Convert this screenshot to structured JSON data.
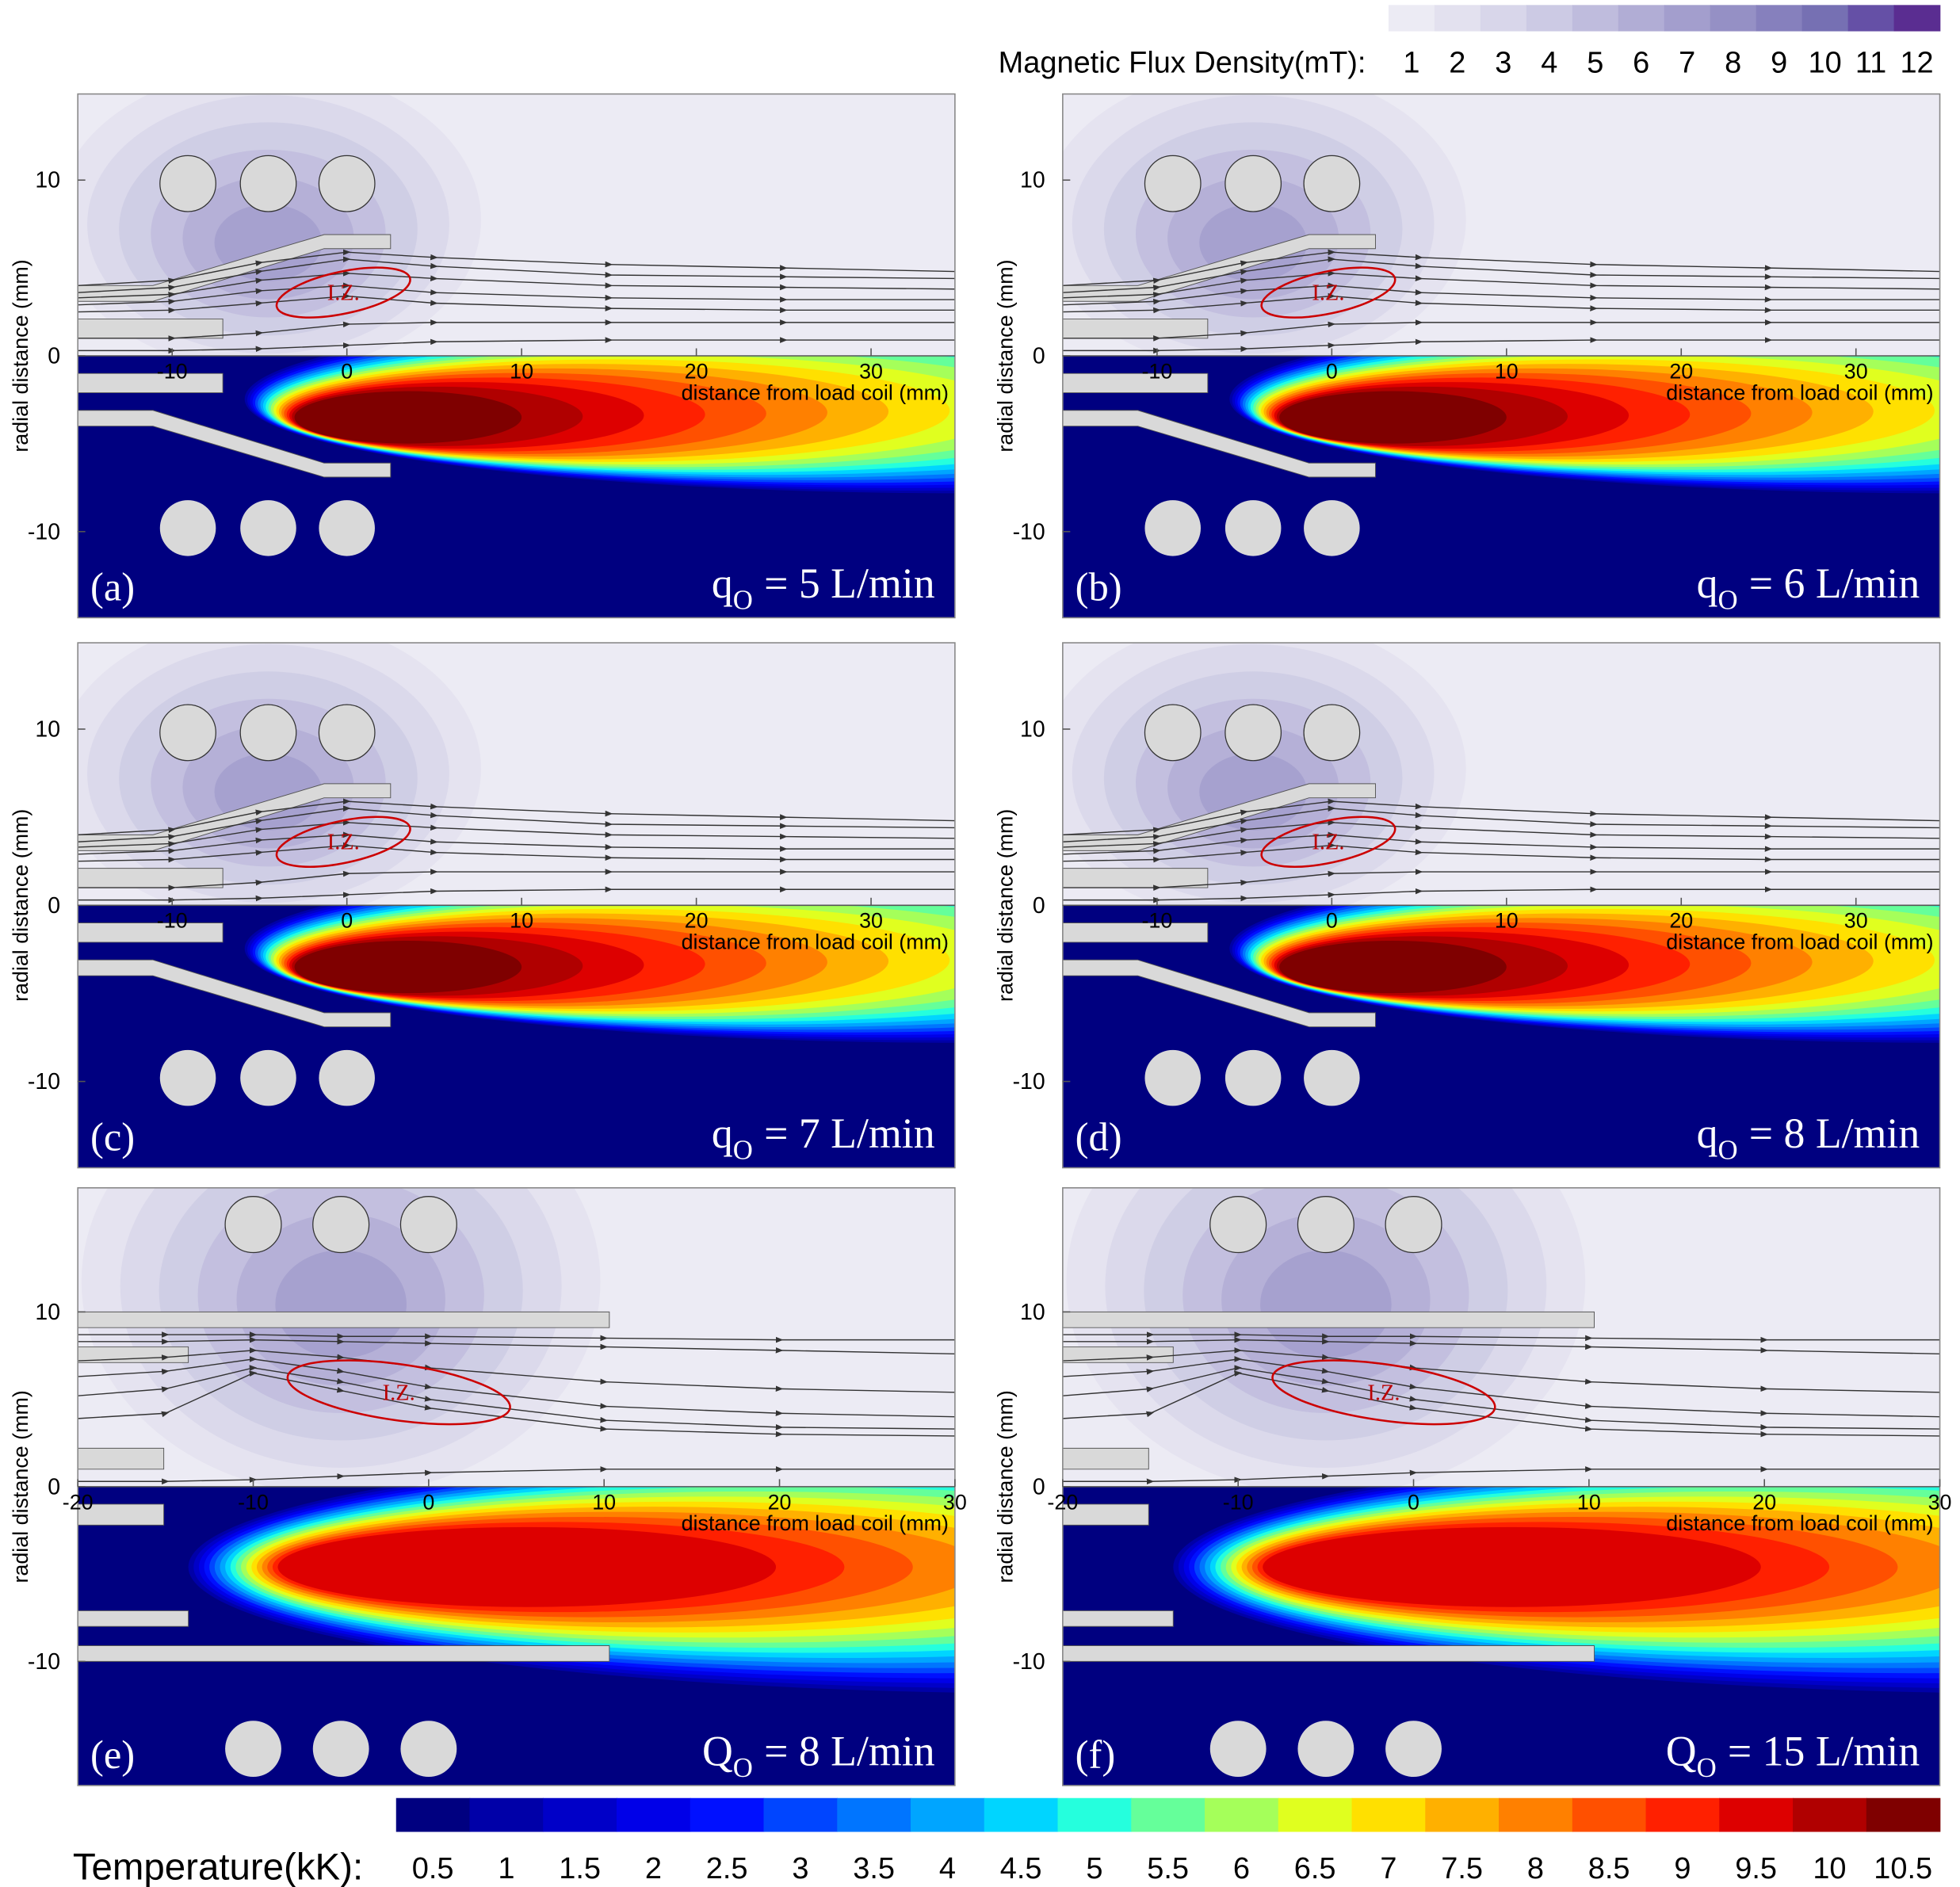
{
  "magnetic_colorbar": {
    "label": "Magnetic Flux Density(mT):",
    "ticks": [
      1,
      2,
      3,
      4,
      5,
      6,
      7,
      8,
      9,
      10,
      11,
      12
    ],
    "colors": [
      "#ecebf4",
      "#e3e1ef",
      "#d8d6ea",
      "#cccae4",
      "#bfbcdd",
      "#b1add5",
      "#a39ecd",
      "#9590c5",
      "#8680bd",
      "#7670b3",
      "#6550a6",
      "#5a2d91"
    ]
  },
  "temperature_colorbar": {
    "label": "Temperature(kK):",
    "ticks": [
      0.5,
      1,
      1.5,
      2,
      2.5,
      3,
      3.5,
      4,
      4.5,
      5,
      5.5,
      6,
      6.5,
      7,
      7.5,
      8,
      8.5,
      9,
      9.5,
      10,
      10.5
    ],
    "colors": [
      "#000080",
      "#0000a8",
      "#0000c8",
      "#0000e8",
      "#0010ff",
      "#0045ff",
      "#0075ff",
      "#00a5ff",
      "#00d5ff",
      "#25ffdd",
      "#65ff9a",
      "#a5ff5a",
      "#e0ff1f",
      "#ffe000",
      "#ffb000",
      "#ff8000",
      "#ff5000",
      "#ff2000",
      "#dd0000",
      "#b00000",
      "#7f0000"
    ]
  },
  "panels": [
    {
      "label": "(a)",
      "quantity": "q",
      "subscript": "O",
      "condition": "= 5 L/min",
      "y_axis_label": "radial distance (mm)",
      "x_axis_label": "distance from load coil (mm)",
      "iz_label": "I.Z.",
      "xlim": [
        -15.4,
        34.8
      ],
      "ylim": [
        -14.9,
        14.9
      ],
      "xticks": [
        -10,
        0,
        10,
        20,
        30
      ],
      "yticks": [
        10,
        0,
        -10
      ]
    },
    {
      "label": "(b)",
      "quantity": "q",
      "subscript": "O",
      "condition": "= 6 L/min",
      "y_axis_label": "radial distance (mm)",
      "x_axis_label": "distance from load coil (mm)",
      "iz_label": "I.Z.",
      "xlim": [
        -15.4,
        34.8
      ],
      "ylim": [
        -14.9,
        14.9
      ],
      "xticks": [
        -10,
        0,
        10,
        20,
        30
      ],
      "yticks": [
        10,
        0,
        -10
      ]
    },
    {
      "label": "(c)",
      "quantity": "q",
      "subscript": "O",
      "condition": "= 7 L/min",
      "y_axis_label": "radial distance (mm)",
      "x_axis_label": "distance from load coil (mm)",
      "iz_label": "I.Z.",
      "xlim": [
        -15.4,
        34.8
      ],
      "ylim": [
        -14.9,
        14.9
      ],
      "xticks": [
        -10,
        0,
        10,
        20,
        30
      ],
      "yticks": [
        10,
        0,
        -10
      ]
    },
    {
      "label": "(d)",
      "quantity": "q",
      "subscript": "O",
      "condition": "= 8 L/min",
      "y_axis_label": "radial distance (mm)",
      "x_axis_label": "distance from load coil (mm)",
      "iz_label": "I.Z.",
      "xlim": [
        -15.4,
        34.8
      ],
      "ylim": [
        -14.9,
        14.9
      ],
      "xticks": [
        -10,
        0,
        10,
        20,
        30
      ],
      "yticks": [
        10,
        0,
        -10
      ]
    },
    {
      "label": "(e)",
      "quantity": "Q",
      "subscript": "O",
      "condition": "= 8 L/min",
      "y_axis_label": "radial distance (mm)",
      "x_axis_label": "distance from load coil (mm)",
      "iz_label": "I.Z.",
      "xlim": [
        -20,
        30
      ],
      "ylim": [
        -17.1,
        17.1
      ],
      "xticks": [
        -20,
        -10,
        0,
        10,
        20,
        30
      ],
      "yticks": [
        10,
        0,
        -10
      ]
    },
    {
      "label": "(f)",
      "quantity": "Q",
      "subscript": "O",
      "condition": "= 15 L/min",
      "y_axis_label": "radial distance (mm)",
      "x_axis_label": "distance from load coil (mm)",
      "iz_label": "I.Z.",
      "xlim": [
        -20,
        30
      ],
      "ylim": [
        -17.1,
        17.1
      ],
      "xticks": [
        -20,
        -10,
        0,
        10,
        20,
        30
      ],
      "yticks": [
        10,
        0,
        -10
      ]
    }
  ]
}
